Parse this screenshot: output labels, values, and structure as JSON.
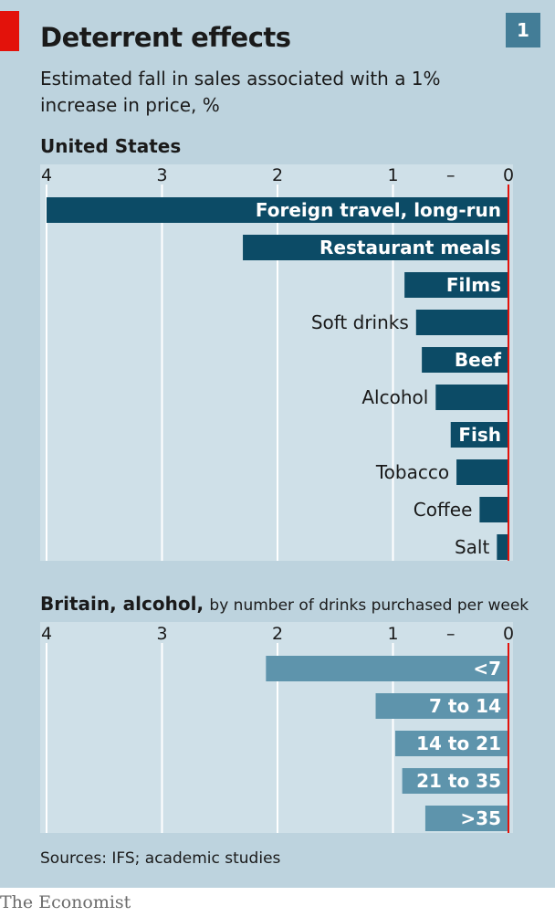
{
  "header": {
    "title": "Deterrent effects",
    "badge": "1",
    "subtitle": "Estimated fall in sales associated with a 1% increase in price, %"
  },
  "footer": {
    "source": "Sources: IFS; academic studies",
    "brand": "The Economist"
  },
  "colors": {
    "background": "#bdd3de",
    "plot_area": "#cfe0e8",
    "us_bar": "#0c4b66",
    "uk_bar": "#5e94ac",
    "zero_line": "#e3120b",
    "accent_tab": "#e3120b"
  },
  "chart_data": [
    {
      "type": "bar",
      "orientation": "horizontal",
      "title": "United States",
      "subtitle": "",
      "ticks": [
        "4",
        "3",
        "2",
        "1",
        "–",
        "0"
      ],
      "xlim": [
        4,
        0
      ],
      "grid": true,
      "categories": [
        "Foreign travel, long-run",
        "Restaurant meals",
        "Films",
        "Soft drinks",
        "Beef",
        "Alcohol",
        "Fish",
        "Tobacco",
        "Coffee",
        "Salt"
      ],
      "values": [
        4.0,
        2.3,
        0.9,
        0.8,
        0.75,
        0.63,
        0.5,
        0.45,
        0.25,
        0.1
      ]
    },
    {
      "type": "bar",
      "orientation": "horizontal",
      "title": "Britain, alcohol,",
      "subtitle": "by number of drinks purchased per week",
      "ticks": [
        "4",
        "3",
        "2",
        "1",
        "–",
        "0"
      ],
      "xlim": [
        4,
        0
      ],
      "grid": true,
      "categories": [
        "<7",
        "7 to 14",
        "14 to 21",
        "21 to 35",
        ">35"
      ],
      "values": [
        2.1,
        1.15,
        0.98,
        0.92,
        0.72
      ]
    }
  ]
}
